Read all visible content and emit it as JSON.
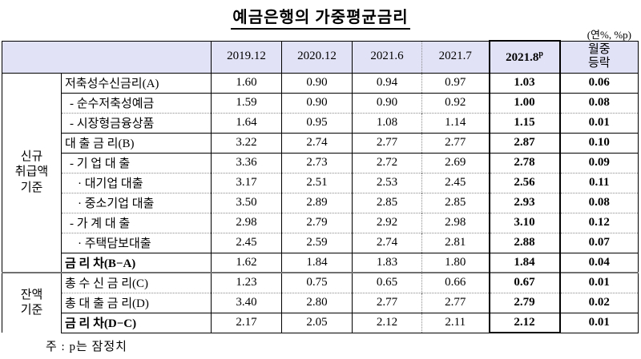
{
  "page": {
    "title": "예금은행의 가중평균금리",
    "unit_note": "(연%, %p)",
    "footnote": "주 : p는 잠정치"
  },
  "colors": {
    "header_bg": "#e2e2f6",
    "border": "#000000",
    "section_divider": "#707070"
  },
  "table": {
    "columns": [
      {
        "label": "2019.12"
      },
      {
        "label": "2020.12"
      },
      {
        "label": "2021.6"
      },
      {
        "label": "2021.7"
      },
      {
        "label": "2021.8",
        "sup": "p",
        "highlighted": true
      },
      {
        "label": "월중\n등락"
      }
    ],
    "sections": [
      {
        "label": "신규\n취급액\n기준",
        "rows": [
          {
            "label": "저축성수신금리(A)",
            "indent": 0,
            "bold": false,
            "sep": "none",
            "values": [
              "1.60",
              "0.90",
              "0.94",
              "0.97",
              "1.03",
              "0.06"
            ]
          },
          {
            "label": "- 순수저축성예금",
            "indent": 1,
            "bold": false,
            "sep": "solid",
            "values": [
              "1.59",
              "0.90",
              "0.90",
              "0.92",
              "1.00",
              "0.08"
            ]
          },
          {
            "label": "- 시장형금융상품",
            "indent": 1,
            "bold": false,
            "sep": "dotted",
            "values": [
              "1.64",
              "0.95",
              "1.08",
              "1.14",
              "1.15",
              "0.01"
            ]
          },
          {
            "label": "대 출 금 리(B)",
            "indent": 0,
            "bold": false,
            "sep": "solid",
            "values": [
              "3.22",
              "2.74",
              "2.77",
              "2.77",
              "2.87",
              "0.10"
            ]
          },
          {
            "label": "- 기 업 대 출",
            "indent": 1,
            "bold": false,
            "sep": "solid",
            "values": [
              "3.36",
              "2.73",
              "2.72",
              "2.69",
              "2.78",
              "0.09"
            ]
          },
          {
            "label": "· 대기업 대출",
            "indent": 2,
            "bold": false,
            "sep": "dotted",
            "values": [
              "3.17",
              "2.51",
              "2.53",
              "2.45",
              "2.56",
              "0.11"
            ]
          },
          {
            "label": "· 중소기업 대출",
            "indent": 2,
            "bold": false,
            "sep": "dotted",
            "values": [
              "3.50",
              "2.89",
              "2.85",
              "2.85",
              "2.93",
              "0.08"
            ]
          },
          {
            "label": "- 가 계 대 출",
            "indent": 1,
            "bold": false,
            "sep": "dotted",
            "values": [
              "2.98",
              "2.79",
              "2.92",
              "2.98",
              "3.10",
              "0.12"
            ]
          },
          {
            "label": "· 주택담보대출",
            "indent": 2,
            "bold": false,
            "sep": "dotted",
            "values": [
              "2.45",
              "2.59",
              "2.74",
              "2.81",
              "2.88",
              "0.07"
            ]
          },
          {
            "label": "금 리 차(B−A)",
            "indent": 0,
            "bold": true,
            "sep": "solid",
            "values": [
              "1.62",
              "1.84",
              "1.83",
              "1.80",
              "1.84",
              "0.04"
            ]
          }
        ]
      },
      {
        "label": "잔액\n기준",
        "rows": [
          {
            "label": "총 수 신 금 리(C)",
            "indent": 0,
            "bold": false,
            "sep": "section",
            "values": [
              "1.23",
              "0.75",
              "0.65",
              "0.66",
              "0.67",
              "0.01"
            ]
          },
          {
            "label": "총 대 출 금 리(D)",
            "indent": 0,
            "bold": false,
            "sep": "dotted",
            "values": [
              "3.40",
              "2.80",
              "2.77",
              "2.77",
              "2.79",
              "0.02"
            ]
          },
          {
            "label": "금 리 차(D−C)",
            "indent": 0,
            "bold": true,
            "sep": "solid",
            "values": [
              "2.17",
              "2.05",
              "2.12",
              "2.11",
              "2.12",
              "0.01"
            ]
          }
        ]
      }
    ]
  }
}
